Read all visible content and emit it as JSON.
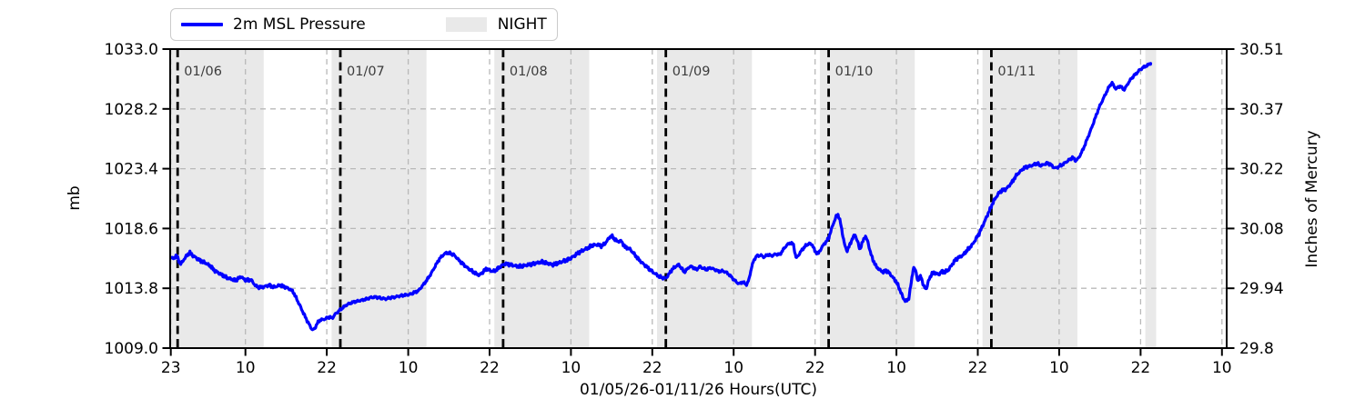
{
  "figure": {
    "xlabel": "01/05/26-01/11/26  Hours(UTC)",
    "ylabel_left": "mb",
    "ylabel_right": "Inches of Mercury",
    "legend": {
      "line_label": "2m MSL Pressure",
      "band_label": "NIGHT"
    },
    "colors": {
      "line": "#0000ff",
      "night_band": "#e9e9e9",
      "grid": "#b9b9b9",
      "spine": "#000000",
      "day_line": "#000000",
      "day_label": "#3c3c3c",
      "tick_label": "#000000"
    }
  },
  "chart_data": {
    "type": "line",
    "series_name": "2m MSL Pressure",
    "x_unit": "hours since 01/06/26 00:00 UTC",
    "xlim": [
      -1.1,
      154.7
    ],
    "ylim_mb": [
      1009.0,
      1033.0
    ],
    "ylim_inhg": [
      29.8,
      30.51
    ],
    "grid": true,
    "legend_position": "top-left",
    "x_ticks": [
      {
        "t": -1,
        "label": "23"
      },
      {
        "t": 10,
        "label": "10"
      },
      {
        "t": 22,
        "label": "22"
      },
      {
        "t": 34,
        "label": "10"
      },
      {
        "t": 46,
        "label": "22"
      },
      {
        "t": 58,
        "label": "10"
      },
      {
        "t": 70,
        "label": "22"
      },
      {
        "t": 82,
        "label": "10"
      },
      {
        "t": 94,
        "label": "22"
      },
      {
        "t": 106,
        "label": "10"
      },
      {
        "t": 118,
        "label": "22"
      },
      {
        "t": 130,
        "label": "10"
      },
      {
        "t": 142,
        "label": "22"
      },
      {
        "t": 154,
        "label": "10"
      }
    ],
    "y_ticks": [
      {
        "v": 1009.0,
        "left": "1009.0",
        "right": "29.8"
      },
      {
        "v": 1013.8,
        "left": "1013.8",
        "right": "29.94"
      },
      {
        "v": 1018.6,
        "left": "1018.6",
        "right": "30.08"
      },
      {
        "v": 1023.4,
        "left": "1023.4",
        "right": "30.22"
      },
      {
        "v": 1028.2,
        "left": "1028.2",
        "right": "30.37"
      },
      {
        "v": 1033.0,
        "left": "1033.0",
        "right": "30.51"
      }
    ],
    "day_lines": [
      {
        "t": 0,
        "label": "01/06"
      },
      {
        "t": 24,
        "label": "01/07"
      },
      {
        "t": 48,
        "label": "01/08"
      },
      {
        "t": 72,
        "label": "01/09"
      },
      {
        "t": 96,
        "label": "01/10"
      },
      {
        "t": 120,
        "label": "01/11"
      }
    ],
    "night_bands": [
      [
        -1.1,
        12.7
      ],
      [
        22.7,
        36.7
      ],
      [
        46.7,
        60.7
      ],
      [
        70.7,
        84.7
      ],
      [
        94.7,
        108.7
      ],
      [
        118.7,
        132.7
      ],
      [
        142.7,
        144.3
      ]
    ],
    "points": [
      [
        -1.07,
        1016.35
      ],
      [
        -0.6,
        1016.15
      ],
      [
        -0.2,
        1016.45
      ],
      [
        0.2,
        1016.0
      ],
      [
        0.5,
        1015.75
      ],
      [
        0.9,
        1016.1
      ],
      [
        1.4,
        1016.45
      ],
      [
        1.8,
        1016.65
      ],
      [
        2.3,
        1016.4
      ],
      [
        3.0,
        1016.15
      ],
      [
        3.6,
        1015.95
      ],
      [
        4.2,
        1015.8
      ],
      [
        4.8,
        1015.6
      ],
      [
        5.4,
        1015.25
      ],
      [
        6.0,
        1015.05
      ],
      [
        6.6,
        1014.85
      ],
      [
        7.2,
        1014.65
      ],
      [
        7.9,
        1014.55
      ],
      [
        8.5,
        1014.45
      ],
      [
        9.0,
        1014.6
      ],
      [
        9.4,
        1014.75
      ],
      [
        9.8,
        1014.5
      ],
      [
        10.3,
        1014.45
      ],
      [
        10.8,
        1014.5
      ],
      [
        11.2,
        1014.2
      ],
      [
        11.6,
        1013.95
      ],
      [
        12.1,
        1013.85
      ],
      [
        12.6,
        1013.9
      ],
      [
        13.1,
        1014.0
      ],
      [
        13.6,
        1014.05
      ],
      [
        14.1,
        1013.9
      ],
      [
        14.6,
        1013.95
      ],
      [
        15.1,
        1014.05
      ],
      [
        15.6,
        1013.95
      ],
      [
        16.1,
        1013.85
      ],
      [
        16.6,
        1013.7
      ],
      [
        17.0,
        1013.55
      ],
      [
        17.5,
        1013.0
      ],
      [
        18.0,
        1012.45
      ],
      [
        18.6,
        1011.75
      ],
      [
        19.1,
        1011.2
      ],
      [
        19.6,
        1010.7
      ],
      [
        19.9,
        1010.45
      ],
      [
        20.2,
        1010.55
      ],
      [
        20.6,
        1011.0
      ],
      [
        21.0,
        1011.25
      ],
      [
        21.5,
        1011.3
      ],
      [
        22.0,
        1011.4
      ],
      [
        22.4,
        1011.5
      ],
      [
        22.8,
        1011.4
      ],
      [
        23.2,
        1011.7
      ],
      [
        23.6,
        1011.9
      ],
      [
        24.0,
        1012.1
      ],
      [
        24.6,
        1012.35
      ],
      [
        25.2,
        1012.55
      ],
      [
        26.0,
        1012.7
      ],
      [
        26.8,
        1012.8
      ],
      [
        27.6,
        1012.9
      ],
      [
        28.4,
        1013.05
      ],
      [
        29.2,
        1013.1
      ],
      [
        30.0,
        1013.0
      ],
      [
        30.7,
        1012.95
      ],
      [
        31.4,
        1013.05
      ],
      [
        32.1,
        1013.1
      ],
      [
        32.8,
        1013.2
      ],
      [
        33.5,
        1013.25
      ],
      [
        34.2,
        1013.3
      ],
      [
        34.9,
        1013.45
      ],
      [
        35.5,
        1013.6
      ],
      [
        36.1,
        1014.0
      ],
      [
        36.8,
        1014.5
      ],
      [
        37.4,
        1015.0
      ],
      [
        38.0,
        1015.6
      ],
      [
        38.6,
        1016.15
      ],
      [
        39.1,
        1016.45
      ],
      [
        39.6,
        1016.65
      ],
      [
        40.2,
        1016.6
      ],
      [
        40.8,
        1016.45
      ],
      [
        41.4,
        1016.1
      ],
      [
        42.0,
        1015.8
      ],
      [
        42.6,
        1015.5
      ],
      [
        43.2,
        1015.25
      ],
      [
        43.9,
        1015.0
      ],
      [
        44.5,
        1014.85
      ],
      [
        45.0,
        1015.1
      ],
      [
        45.5,
        1015.35
      ],
      [
        46.0,
        1015.25
      ],
      [
        46.5,
        1015.15
      ],
      [
        47.0,
        1015.3
      ],
      [
        47.6,
        1015.55
      ],
      [
        48.2,
        1015.75
      ],
      [
        49.0,
        1015.7
      ],
      [
        49.8,
        1015.6
      ],
      [
        50.6,
        1015.55
      ],
      [
        51.4,
        1015.65
      ],
      [
        52.2,
        1015.75
      ],
      [
        53.0,
        1015.85
      ],
      [
        53.8,
        1015.9
      ],
      [
        54.6,
        1015.8
      ],
      [
        55.3,
        1015.7
      ],
      [
        56.0,
        1015.8
      ],
      [
        56.8,
        1015.95
      ],
      [
        57.5,
        1016.1
      ],
      [
        58.2,
        1016.3
      ],
      [
        59.0,
        1016.6
      ],
      [
        59.8,
        1016.85
      ],
      [
        60.5,
        1017.05
      ],
      [
        61.2,
        1017.25
      ],
      [
        61.9,
        1017.3
      ],
      [
        62.5,
        1017.2
      ],
      [
        63.1,
        1017.45
      ],
      [
        63.7,
        1017.9
      ],
      [
        64.0,
        1018.0
      ],
      [
        64.4,
        1017.75
      ],
      [
        64.9,
        1017.55
      ],
      [
        65.4,
        1017.6
      ],
      [
        66.0,
        1017.1
      ],
      [
        66.7,
        1016.95
      ],
      [
        67.4,
        1016.5
      ],
      [
        68.1,
        1016.05
      ],
      [
        68.8,
        1015.7
      ],
      [
        69.5,
        1015.35
      ],
      [
        70.2,
        1015.05
      ],
      [
        70.9,
        1014.8
      ],
      [
        71.5,
        1014.65
      ],
      [
        72.0,
        1014.6
      ],
      [
        72.4,
        1014.9
      ],
      [
        72.9,
        1015.3
      ],
      [
        73.4,
        1015.55
      ],
      [
        73.9,
        1015.7
      ],
      [
        74.3,
        1015.4
      ],
      [
        74.7,
        1015.1
      ],
      [
        75.1,
        1015.3
      ],
      [
        75.5,
        1015.55
      ],
      [
        76.0,
        1015.5
      ],
      [
        76.5,
        1015.3
      ],
      [
        77.0,
        1015.55
      ],
      [
        77.5,
        1015.4
      ],
      [
        78.0,
        1015.3
      ],
      [
        78.6,
        1015.45
      ],
      [
        79.2,
        1015.3
      ],
      [
        79.8,
        1015.15
      ],
      [
        80.4,
        1015.2
      ],
      [
        81.0,
        1015.05
      ],
      [
        81.6,
        1014.75
      ],
      [
        82.2,
        1014.4
      ],
      [
        82.8,
        1014.15
      ],
      [
        83.3,
        1014.3
      ],
      [
        83.9,
        1014.1
      ],
      [
        84.2,
        1014.4
      ],
      [
        84.6,
        1015.4
      ],
      [
        85.0,
        1016.1
      ],
      [
        85.4,
        1016.4
      ],
      [
        86.0,
        1016.45
      ],
      [
        86.5,
        1016.3
      ],
      [
        87.0,
        1016.5
      ],
      [
        87.6,
        1016.4
      ],
      [
        88.2,
        1016.55
      ],
      [
        88.8,
        1016.5
      ],
      [
        89.3,
        1016.9
      ],
      [
        89.8,
        1017.25
      ],
      [
        90.3,
        1017.45
      ],
      [
        90.8,
        1017.35
      ],
      [
        91.2,
        1016.2
      ],
      [
        91.6,
        1016.5
      ],
      [
        92.1,
        1016.9
      ],
      [
        92.6,
        1017.2
      ],
      [
        93.1,
        1017.4
      ],
      [
        93.6,
        1017.3
      ],
      [
        94.0,
        1016.75
      ],
      [
        94.5,
        1016.6
      ],
      [
        95.0,
        1017.1
      ],
      [
        95.5,
        1017.45
      ],
      [
        96.0,
        1017.8
      ],
      [
        96.3,
        1018.35
      ],
      [
        96.7,
        1019.0
      ],
      [
        97.1,
        1019.55
      ],
      [
        97.4,
        1019.7
      ],
      [
        97.7,
        1019.2
      ],
      [
        98.0,
        1018.3
      ],
      [
        98.4,
        1017.2
      ],
      [
        98.7,
        1016.8
      ],
      [
        99.1,
        1017.25
      ],
      [
        99.5,
        1017.8
      ],
      [
        99.9,
        1018.1
      ],
      [
        100.3,
        1017.5
      ],
      [
        100.6,
        1016.9
      ],
      [
        101.0,
        1017.5
      ],
      [
        101.4,
        1018.0
      ],
      [
        101.8,
        1017.5
      ],
      [
        102.2,
        1016.6
      ],
      [
        102.6,
        1016.0
      ],
      [
        103.0,
        1015.55
      ],
      [
        103.5,
        1015.3
      ],
      [
        104.0,
        1015.1
      ],
      [
        104.5,
        1015.25
      ],
      [
        105.0,
        1015.0
      ],
      [
        105.5,
        1014.65
      ],
      [
        106.0,
        1014.3
      ],
      [
        106.5,
        1013.7
      ],
      [
        107.0,
        1013.0
      ],
      [
        107.4,
        1012.75
      ],
      [
        107.8,
        1012.95
      ],
      [
        108.2,
        1014.3
      ],
      [
        108.5,
        1015.5
      ],
      [
        108.8,
        1015.25
      ],
      [
        109.2,
        1014.35
      ],
      [
        109.6,
        1014.85
      ],
      [
        110.0,
        1013.95
      ],
      [
        110.4,
        1013.75
      ],
      [
        110.8,
        1014.5
      ],
      [
        111.2,
        1014.95
      ],
      [
        111.7,
        1015.05
      ],
      [
        112.2,
        1014.9
      ],
      [
        112.7,
        1015.15
      ],
      [
        113.2,
        1015.1
      ],
      [
        113.7,
        1015.3
      ],
      [
        114.2,
        1015.7
      ],
      [
        114.7,
        1016.1
      ],
      [
        115.2,
        1016.3
      ],
      [
        115.7,
        1016.4
      ],
      [
        116.2,
        1016.7
      ],
      [
        116.7,
        1017.0
      ],
      [
        117.2,
        1017.3
      ],
      [
        117.7,
        1017.75
      ],
      [
        118.2,
        1018.2
      ],
      [
        118.7,
        1018.8
      ],
      [
        119.2,
        1019.4
      ],
      [
        119.6,
        1019.9
      ],
      [
        120.0,
        1020.4
      ],
      [
        120.4,
        1020.85
      ],
      [
        120.8,
        1021.2
      ],
      [
        121.2,
        1021.5
      ],
      [
        121.6,
        1021.65
      ],
      [
        122.0,
        1021.7
      ],
      [
        122.4,
        1021.9
      ],
      [
        122.8,
        1022.15
      ],
      [
        123.2,
        1022.45
      ],
      [
        123.6,
        1022.8
      ],
      [
        124.0,
        1023.05
      ],
      [
        124.4,
        1023.25
      ],
      [
        124.8,
        1023.45
      ],
      [
        125.2,
        1023.55
      ],
      [
        125.6,
        1023.6
      ],
      [
        126.0,
        1023.65
      ],
      [
        126.4,
        1023.75
      ],
      [
        126.8,
        1023.8
      ],
      [
        127.2,
        1023.65
      ],
      [
        127.6,
        1023.7
      ],
      [
        128.0,
        1023.8
      ],
      [
        128.4,
        1023.85
      ],
      [
        128.8,
        1023.7
      ],
      [
        129.2,
        1023.5
      ],
      [
        129.6,
        1023.45
      ],
      [
        130.0,
        1023.6
      ],
      [
        130.4,
        1023.7
      ],
      [
        130.8,
        1023.85
      ],
      [
        131.2,
        1024.0
      ],
      [
        131.6,
        1024.15
      ],
      [
        132.0,
        1024.3
      ],
      [
        132.4,
        1024.05
      ],
      [
        132.8,
        1024.2
      ],
      [
        133.2,
        1024.6
      ],
      [
        133.6,
        1025.05
      ],
      [
        134.0,
        1025.6
      ],
      [
        134.4,
        1026.15
      ],
      [
        134.8,
        1026.7
      ],
      [
        135.2,
        1027.3
      ],
      [
        135.6,
        1027.9
      ],
      [
        136.0,
        1028.45
      ],
      [
        136.4,
        1028.9
      ],
      [
        136.8,
        1029.35
      ],
      [
        137.2,
        1029.8
      ],
      [
        137.5,
        1030.1
      ],
      [
        137.8,
        1030.3
      ],
      [
        138.1,
        1030.0
      ],
      [
        138.4,
        1029.8
      ],
      [
        138.7,
        1029.95
      ],
      [
        139.0,
        1030.05
      ],
      [
        139.3,
        1029.85
      ],
      [
        139.6,
        1029.75
      ],
      [
        139.9,
        1030.0
      ],
      [
        140.2,
        1030.3
      ],
      [
        140.6,
        1030.6
      ],
      [
        141.0,
        1030.85
      ],
      [
        141.4,
        1031.05
      ],
      [
        141.8,
        1031.3
      ],
      [
        142.2,
        1031.45
      ],
      [
        142.6,
        1031.6
      ],
      [
        143.0,
        1031.7
      ],
      [
        143.3,
        1031.8
      ],
      [
        143.5,
        1031.85
      ]
    ]
  }
}
